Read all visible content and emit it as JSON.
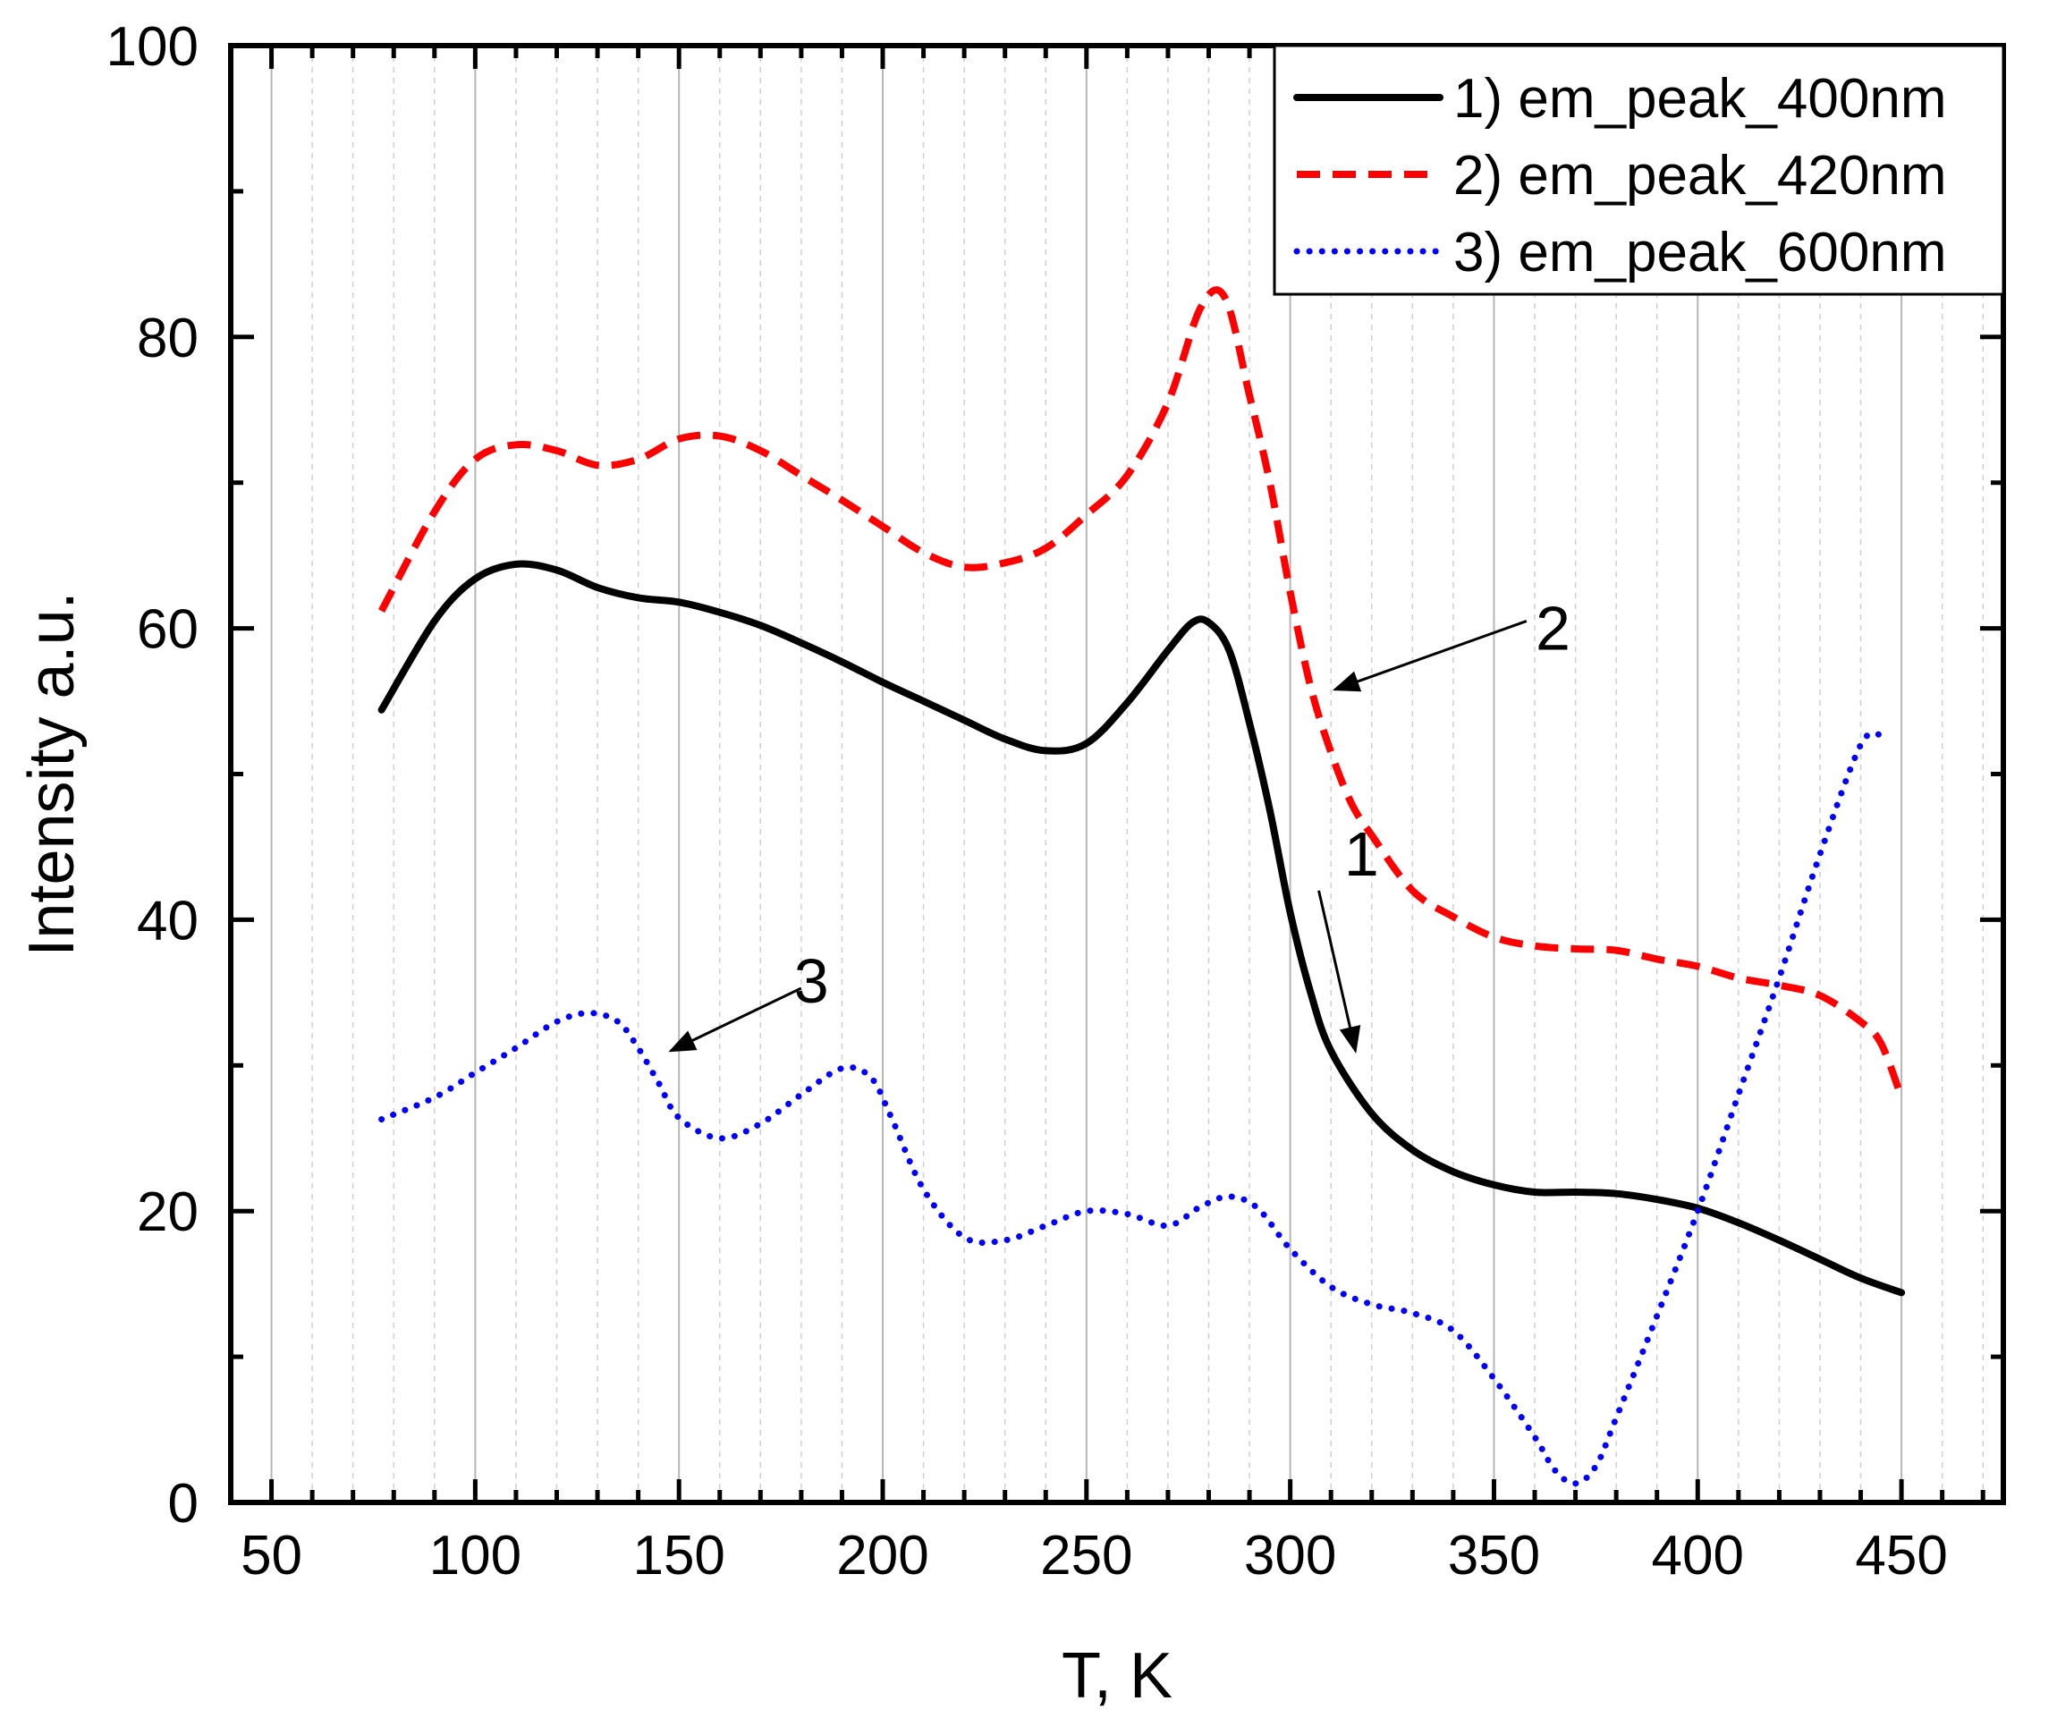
{
  "chart_data": {
    "type": "line",
    "title": "",
    "xlabel": "T, K",
    "ylabel": "Intensity a.u.",
    "xlim": [
      40,
      475
    ],
    "ylim": [
      0,
      100
    ],
    "x_ticks": [
      50,
      100,
      150,
      200,
      250,
      300,
      350,
      400,
      450
    ],
    "y_ticks": [
      0,
      20,
      40,
      60,
      80,
      100
    ],
    "x_tick_labels": [
      "50",
      "100",
      "150",
      "200",
      "250",
      "300",
      "350",
      "400",
      "450"
    ],
    "y_tick_labels": [
      "0",
      "20",
      "40",
      "60",
      "80",
      "100"
    ],
    "grid": "vertical",
    "legend_position": "top-right",
    "series": [
      {
        "name": "1) em_peak_400nm",
        "color": "#000000",
        "style": "solid",
        "points": [
          [
            77,
            54.4
          ],
          [
            90,
            60.5
          ],
          [
            100,
            63.4
          ],
          [
            110,
            64.4
          ],
          [
            120,
            64.0
          ],
          [
            130,
            62.8
          ],
          [
            140,
            62.1
          ],
          [
            150,
            61.8
          ],
          [
            160,
            61.1
          ],
          [
            170,
            60.2
          ],
          [
            180,
            59.0
          ],
          [
            190,
            57.7
          ],
          [
            200,
            56.3
          ],
          [
            210,
            55.0
          ],
          [
            220,
            53.7
          ],
          [
            230,
            52.4
          ],
          [
            240,
            51.6
          ],
          [
            250,
            52.1
          ],
          [
            260,
            54.9
          ],
          [
            270,
            58.5
          ],
          [
            276,
            60.4
          ],
          [
            280,
            60.4
          ],
          [
            285,
            58.5
          ],
          [
            290,
            53.5
          ],
          [
            295,
            47.5
          ],
          [
            300,
            40.5
          ],
          [
            305,
            35.0
          ],
          [
            310,
            31.0
          ],
          [
            320,
            26.7
          ],
          [
            330,
            24.2
          ],
          [
            340,
            22.7
          ],
          [
            350,
            21.8
          ],
          [
            360,
            21.3
          ],
          [
            370,
            21.3
          ],
          [
            380,
            21.2
          ],
          [
            390,
            20.8
          ],
          [
            400,
            20.2
          ],
          [
            410,
            19.2
          ],
          [
            420,
            18.0
          ],
          [
            430,
            16.7
          ],
          [
            440,
            15.4
          ],
          [
            450,
            14.4
          ]
        ]
      },
      {
        "name": "2) em_peak_420nm",
        "color": "#ff0000",
        "style": "dashed",
        "points": [
          [
            77,
            61.2
          ],
          [
            90,
            68.0
          ],
          [
            100,
            71.6
          ],
          [
            110,
            72.6
          ],
          [
            120,
            72.2
          ],
          [
            130,
            71.2
          ],
          [
            140,
            71.6
          ],
          [
            150,
            73.0
          ],
          [
            160,
            73.2
          ],
          [
            170,
            72.2
          ],
          [
            180,
            70.5
          ],
          [
            190,
            68.8
          ],
          [
            200,
            67.0
          ],
          [
            210,
            65.2
          ],
          [
            220,
            64.2
          ],
          [
            230,
            64.5
          ],
          [
            240,
            65.5
          ],
          [
            250,
            67.8
          ],
          [
            260,
            70.5
          ],
          [
            270,
            75.5
          ],
          [
            278,
            82.0
          ],
          [
            284,
            82.7
          ],
          [
            290,
            76.0
          ],
          [
            295,
            70.0
          ],
          [
            300,
            62.5
          ],
          [
            305,
            56.0
          ],
          [
            310,
            51.5
          ],
          [
            315,
            48.0
          ],
          [
            320,
            45.8
          ],
          [
            330,
            42.0
          ],
          [
            340,
            40.2
          ],
          [
            350,
            38.8
          ],
          [
            360,
            38.2
          ],
          [
            370,
            38.0
          ],
          [
            380,
            37.9
          ],
          [
            390,
            37.3
          ],
          [
            400,
            36.8
          ],
          [
            410,
            36.0
          ],
          [
            420,
            35.5
          ],
          [
            430,
            34.8
          ],
          [
            440,
            33.0
          ],
          [
            445,
            31.5
          ],
          [
            450,
            27.8
          ]
        ]
      },
      {
        "name": "3) em_peak_600nm",
        "color": "#0000ff",
        "style": "dotted",
        "points": [
          [
            77,
            26.3
          ],
          [
            90,
            27.8
          ],
          [
            100,
            29.5
          ],
          [
            110,
            31.2
          ],
          [
            120,
            33.0
          ],
          [
            128,
            33.6
          ],
          [
            135,
            33.0
          ],
          [
            140,
            31.2
          ],
          [
            145,
            28.8
          ],
          [
            150,
            26.4
          ],
          [
            160,
            25.0
          ],
          [
            170,
            26.0
          ],
          [
            180,
            28.0
          ],
          [
            190,
            29.8
          ],
          [
            197,
            29.2
          ],
          [
            202,
            26.5
          ],
          [
            210,
            21.5
          ],
          [
            220,
            18.2
          ],
          [
            230,
            18.0
          ],
          [
            240,
            19.0
          ],
          [
            250,
            20.0
          ],
          [
            260,
            19.8
          ],
          [
            270,
            19.0
          ],
          [
            278,
            20.3
          ],
          [
            285,
            21.0
          ],
          [
            292,
            20.2
          ],
          [
            300,
            17.4
          ],
          [
            310,
            14.8
          ],
          [
            320,
            13.6
          ],
          [
            330,
            13.0
          ],
          [
            340,
            11.8
          ],
          [
            350,
            8.5
          ],
          [
            360,
            4.5
          ],
          [
            365,
            2.2
          ],
          [
            370,
            1.3
          ],
          [
            375,
            2.5
          ],
          [
            380,
            5.8
          ],
          [
            390,
            12.8
          ],
          [
            400,
            20.0
          ],
          [
            410,
            28.0
          ],
          [
            420,
            36.0
          ],
          [
            430,
            44.5
          ],
          [
            440,
            52.0
          ],
          [
            445,
            52.7
          ]
        ]
      }
    ],
    "annotations": [
      {
        "label": "1",
        "text_at": [
          317.5,
          44.5
        ],
        "arrow_from": [
          307,
          42
        ],
        "arrow_to": [
          316,
          31
        ]
      },
      {
        "label": "2",
        "text_at": [
          364.5,
          60.0
        ],
        "arrow_from": [
          358,
          60.5
        ],
        "arrow_to": [
          311,
          55.8
        ]
      },
      {
        "label": "3",
        "text_at": [
          182.5,
          35.8
        ],
        "arrow_from": [
          180,
          35.3
        ],
        "arrow_to": [
          148,
          31
        ]
      }
    ]
  }
}
